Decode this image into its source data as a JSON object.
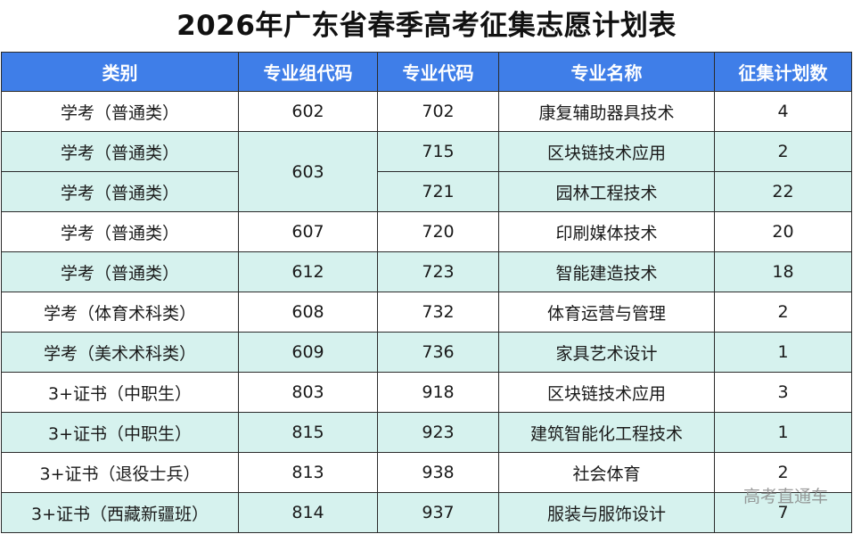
{
  "title": "2026年广东省春季高考征集志愿计划表",
  "headers": {
    "category": "类别",
    "group_code": "专业组代码",
    "major_code": "专业代码",
    "major_name": "专业名称",
    "plan_count": "征集计划数"
  },
  "rows": [
    {
      "category": "学考（普通类）",
      "group_code": "602",
      "major_code": "702",
      "major_name": "康复辅助器具技术",
      "plan_count": "4"
    },
    {
      "category": "学考（普通类）",
      "group_code": "603",
      "major_code": "715",
      "major_name": "区块链技术应用",
      "plan_count": "2"
    },
    {
      "category": "学考（普通类）",
      "group_code": "603",
      "major_code": "721",
      "major_name": "园林工程技术",
      "plan_count": "22"
    },
    {
      "category": "学考（普通类）",
      "group_code": "607",
      "major_code": "720",
      "major_name": "印刷媒体技术",
      "plan_count": "20"
    },
    {
      "category": "学考（普通类）",
      "group_code": "612",
      "major_code": "723",
      "major_name": "智能建造技术",
      "plan_count": "18"
    },
    {
      "category": "学考（体育术科类）",
      "group_code": "608",
      "major_code": "732",
      "major_name": "体育运营与管理",
      "plan_count": "2"
    },
    {
      "category": "学考（美术术科类）",
      "group_code": "609",
      "major_code": "736",
      "major_name": "家具艺术设计",
      "plan_count": "1"
    },
    {
      "category": "3+证书（中职生）",
      "group_code": "803",
      "major_code": "918",
      "major_name": "区块链技术应用",
      "plan_count": "3"
    },
    {
      "category": "3+证书（中职生）",
      "group_code": "815",
      "major_code": "923",
      "major_name": "建筑智能化工程技术",
      "plan_count": "1"
    },
    {
      "category": "3+证书（退役士兵）",
      "group_code": "813",
      "major_code": "938",
      "major_name": "社会体育",
      "plan_count": "2"
    },
    {
      "category": "3+证书（西藏新疆班）",
      "group_code": "814",
      "major_code": "937",
      "major_name": "服装与服饰设计",
      "plan_count": "7"
    }
  ],
  "watermark": "高考直通车",
  "colors": {
    "header_bg": "#3f7ee8",
    "tint_row_bg": "#d6f2ee",
    "plain_row_bg": "#ffffff"
  }
}
